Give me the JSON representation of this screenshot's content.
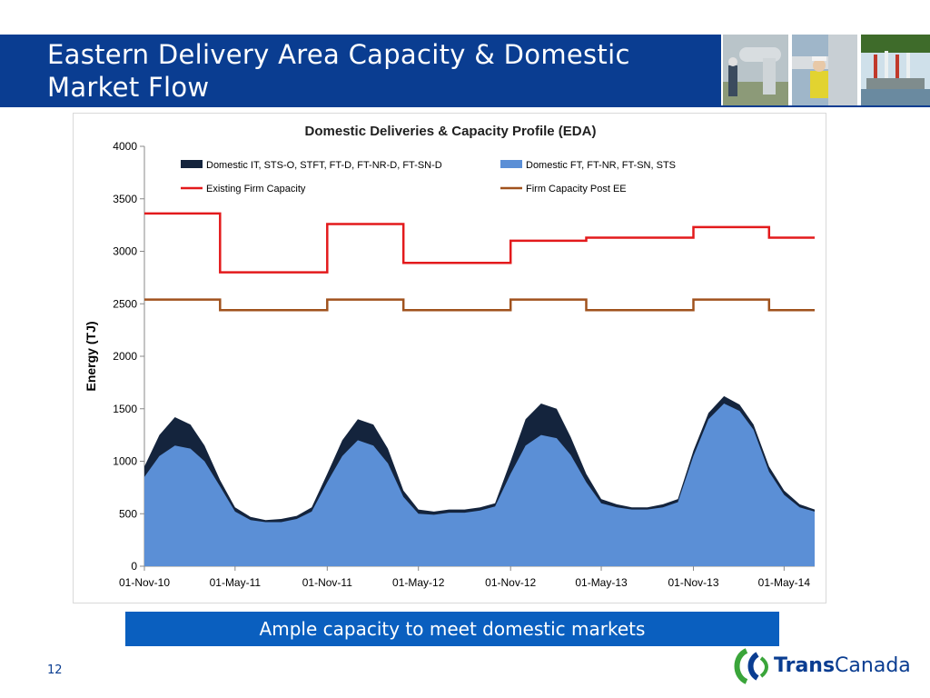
{
  "slide": {
    "title": "Eastern Delivery Area Capacity & Domestic Market Flow",
    "banner": "Ample capacity to meet domestic markets",
    "page_number": "12",
    "logo_bold": "Trans",
    "logo_rest": "Canada"
  },
  "colors": {
    "title_bar": "#0a3d91",
    "banner": "#0a5fbf",
    "series_it": "#14243d",
    "series_ft": "#5b8fd6",
    "existing_capacity": "#e31a1c",
    "post_ee_capacity": "#a0521d"
  },
  "chart_data": {
    "type": "area",
    "title": "Domestic Deliveries & Capacity Profile (EDA)",
    "ylabel": "Energy (TJ)",
    "xlabel": "",
    "ylim": [
      0,
      4000
    ],
    "xlim": [
      "2010-11-01",
      "2014-07-01"
    ],
    "yticks": [
      "0",
      "500",
      "1000",
      "1500",
      "2000",
      "2500",
      "3000",
      "3500",
      "4000"
    ],
    "xticks": [
      "01-Nov-10",
      "01-May-11",
      "01-Nov-11",
      "01-May-12",
      "01-Nov-12",
      "01-May-13",
      "01-Nov-13",
      "01-May-14"
    ],
    "xtick_dates": [
      "2010-11-01",
      "2011-05-01",
      "2011-11-01",
      "2012-05-01",
      "2012-11-01",
      "2013-05-01",
      "2013-11-01",
      "2014-05-01"
    ],
    "grid": false,
    "legend_position": "top",
    "series": [
      {
        "name": "Domestic IT, STS-O, STFT, FT-D, FT-NR-D, FT-SN-D",
        "kind": "area",
        "x": [
          "2010-11-01",
          "2010-12-01",
          "2011-01-01",
          "2011-02-01",
          "2011-03-01",
          "2011-04-01",
          "2011-05-01",
          "2011-06-01",
          "2011-07-01",
          "2011-08-01",
          "2011-09-01",
          "2011-10-01",
          "2011-11-01",
          "2011-12-01",
          "2012-01-01",
          "2012-02-01",
          "2012-03-01",
          "2012-04-01",
          "2012-05-01",
          "2012-06-01",
          "2012-07-01",
          "2012-08-01",
          "2012-09-01",
          "2012-10-01",
          "2012-11-01",
          "2012-12-01",
          "2013-01-01",
          "2013-02-01",
          "2013-03-01",
          "2013-04-01",
          "2013-05-01",
          "2013-06-01",
          "2013-07-01",
          "2013-08-01",
          "2013-09-01",
          "2013-10-01",
          "2013-11-01",
          "2013-12-01",
          "2014-01-01",
          "2014-02-01",
          "2014-03-01",
          "2014-04-01",
          "2014-05-01",
          "2014-06-01",
          "2014-07-01"
        ],
        "values": [
          950,
          1250,
          1420,
          1350,
          1150,
          820,
          560,
          470,
          440,
          450,
          480,
          560,
          880,
          1200,
          1400,
          1350,
          1120,
          720,
          540,
          520,
          540,
          540,
          560,
          600,
          1000,
          1400,
          1550,
          1500,
          1230,
          880,
          640,
          590,
          560,
          560,
          590,
          640,
          1100,
          1460,
          1620,
          1540,
          1350,
          950,
          720,
          590,
          540
        ]
      },
      {
        "name": "Domestic  FT, FT-NR, FT-SN, STS",
        "kind": "area",
        "x": [
          "2010-11-01",
          "2010-12-01",
          "2011-01-01",
          "2011-02-01",
          "2011-03-01",
          "2011-04-01",
          "2011-05-01",
          "2011-06-01",
          "2011-07-01",
          "2011-08-01",
          "2011-09-01",
          "2011-10-01",
          "2011-11-01",
          "2011-12-01",
          "2012-01-01",
          "2012-02-01",
          "2012-03-01",
          "2012-04-01",
          "2012-05-01",
          "2012-06-01",
          "2012-07-01",
          "2012-08-01",
          "2012-09-01",
          "2012-10-01",
          "2012-11-01",
          "2012-12-01",
          "2013-01-01",
          "2013-02-01",
          "2013-03-01",
          "2013-04-01",
          "2013-05-01",
          "2013-06-01",
          "2013-07-01",
          "2013-08-01",
          "2013-09-01",
          "2013-10-01",
          "2013-11-01",
          "2013-12-01",
          "2014-01-01",
          "2014-02-01",
          "2014-03-01",
          "2014-04-01",
          "2014-05-01",
          "2014-06-01",
          "2014-07-01"
        ],
        "values": [
          850,
          1050,
          1150,
          1120,
          1000,
          760,
          520,
          440,
          420,
          420,
          450,
          520,
          800,
          1050,
          1200,
          1150,
          980,
          660,
          500,
          490,
          510,
          510,
          530,
          570,
          880,
          1150,
          1250,
          1220,
          1060,
          800,
          600,
          560,
          540,
          540,
          560,
          610,
          1050,
          1400,
          1550,
          1480,
          1300,
          900,
          680,
          560,
          520
        ]
      },
      {
        "name": "Existing Firm Capacity",
        "kind": "step",
        "x": [
          "2010-11-01",
          "2011-04-01",
          "2011-11-01",
          "2012-04-01",
          "2012-11-01",
          "2013-04-01",
          "2013-11-01",
          "2014-04-01",
          "2014-07-01"
        ],
        "values": [
          3360,
          2800,
          3260,
          2890,
          3100,
          3130,
          3230,
          3130,
          3130
        ]
      },
      {
        "name": "Firm Capacity Post EE",
        "kind": "step",
        "x": [
          "2010-11-01",
          "2011-04-01",
          "2011-11-01",
          "2012-04-01",
          "2012-11-01",
          "2013-04-01",
          "2013-11-01",
          "2014-04-01",
          "2014-07-01"
        ],
        "values": [
          2540,
          2440,
          2540,
          2440,
          2540,
          2440,
          2540,
          2440,
          2440
        ]
      }
    ]
  }
}
